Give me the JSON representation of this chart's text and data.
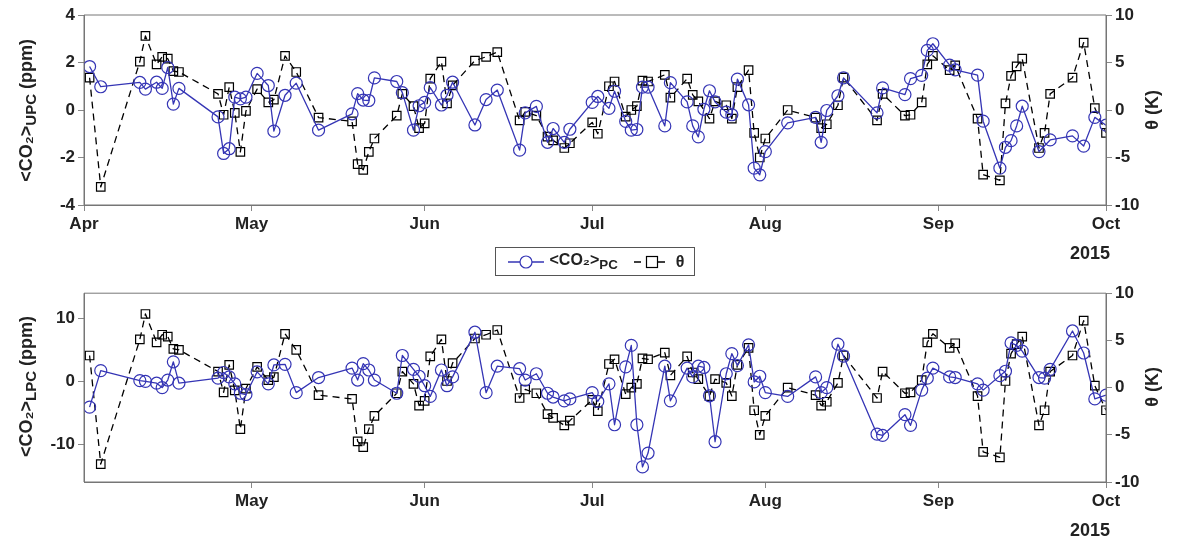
{
  "chart_data": [
    {
      "type": "line",
      "ylabel": "<CO₂>$_{UPC}$ (ppm)",
      "y2label": "θ (K)",
      "xlabel": "2015",
      "legend": "bottom",
      "xlim": [
        "2015-04-01",
        "2015-10-01"
      ],
      "xticks": [
        {
          "value": "2015-04-01",
          "label": "Apr"
        },
        {
          "value": "2015-05-01",
          "label": "May"
        },
        {
          "value": "2015-06-01",
          "label": "Jun"
        },
        {
          "value": "2015-07-01",
          "label": "Jul"
        },
        {
          "value": "2015-08-01",
          "label": "Aug"
        },
        {
          "value": "2015-09-01",
          "label": "Sep"
        },
        {
          "value": "2015-10-01",
          "label": "Oct"
        }
      ],
      "ylim": [
        -4,
        4
      ],
      "yticks": [
        -4,
        -2,
        0,
        2,
        4
      ],
      "y2lim": [
        -10,
        10
      ],
      "y2ticks": [
        -10,
        -5,
        0,
        5,
        10
      ],
      "series": [
        {
          "name": "<CO₂>$_{PC}$",
          "color": "#3535b5",
          "marker": "circle",
          "line_style": "solid",
          "x": [
            "2015-04-02",
            "2015-04-04",
            "2015-04-11",
            "2015-04-12",
            "2015-04-14",
            "2015-04-15",
            "2015-04-16",
            "2015-04-17",
            "2015-04-18",
            "2015-04-25",
            "2015-04-26",
            "2015-04-27",
            "2015-04-28",
            "2015-04-29",
            "2015-04-30",
            "2015-05-02",
            "2015-05-04",
            "2015-05-05",
            "2015-05-07",
            "2015-05-09",
            "2015-05-13",
            "2015-05-19",
            "2015-05-20",
            "2015-05-21",
            "2015-05-22",
            "2015-05-23",
            "2015-05-27",
            "2015-05-28",
            "2015-05-30",
            "2015-05-31",
            "2015-06-01",
            "2015-06-02",
            "2015-06-04",
            "2015-06-05",
            "2015-06-06",
            "2015-06-10",
            "2015-06-12",
            "2015-06-14",
            "2015-06-18",
            "2015-06-19",
            "2015-06-21",
            "2015-06-23",
            "2015-06-24",
            "2015-06-26",
            "2015-06-27",
            "2015-07-01",
            "2015-07-02",
            "2015-07-04",
            "2015-07-05",
            "2015-07-07",
            "2015-07-08",
            "2015-07-09",
            "2015-07-10",
            "2015-07-11",
            "2015-07-14",
            "2015-07-15",
            "2015-07-18",
            "2015-07-19",
            "2015-07-20",
            "2015-07-21",
            "2015-07-22",
            "2015-07-23",
            "2015-07-25",
            "2015-07-26",
            "2015-07-27",
            "2015-07-29",
            "2015-07-30",
            "2015-07-31",
            "2015-08-01",
            "2015-08-05",
            "2015-08-10",
            "2015-08-11",
            "2015-08-12",
            "2015-08-14",
            "2015-08-15",
            "2015-08-21",
            "2015-08-22",
            "2015-08-26",
            "2015-08-27",
            "2015-08-29",
            "2015-08-30",
            "2015-08-31",
            "2015-09-03",
            "2015-09-04",
            "2015-09-08",
            "2015-09-09",
            "2015-09-12",
            "2015-09-13",
            "2015-09-14",
            "2015-09-15",
            "2015-09-16",
            "2015-09-19",
            "2015-09-21",
            "2015-09-25",
            "2015-09-27",
            "2015-09-29",
            "2015-10-01"
          ],
          "values": [
            1.83,
            0.98,
            1.16,
            0.88,
            1.17,
            0.91,
            1.79,
            0.25,
            0.91,
            -0.29,
            -1.83,
            -1.63,
            0.54,
            0.47,
            0.54,
            1.54,
            1.03,
            -0.89,
            0.62,
            1.13,
            -0.85,
            -0.16,
            0.69,
            0.42,
            0.4,
            1.35,
            1.2,
            0.73,
            -0.85,
            0.18,
            0.32,
            0.94,
            0.21,
            0.62,
            1.17,
            -0.63,
            0.44,
            0.84,
            -1.69,
            -0.12,
            0.15,
            -1.36,
            -0.78,
            -1.36,
            -0.81,
            0.32,
            0.57,
            0.07,
            0.79,
            -0.48,
            -0.85,
            -0.82,
            0.96,
            0.96,
            -0.67,
            1.15,
            0.34,
            -0.67,
            -1.13,
            0.03,
            0.81,
            0.34,
            -0.09,
            -0.2,
            1.3,
            0.22,
            -2.45,
            -2.73,
            -1.75,
            -0.54,
            -0.31,
            -1.36,
            -0.02,
            0.6,
            1.35,
            -0.12,
            0.93,
            0.65,
            1.32,
            1.46,
            2.51,
            2.79,
            1.89,
            1.69,
            1.47,
            -0.47,
            -2.45,
            -1.57,
            -1.29,
            -0.67,
            0.16,
            -1.75,
            -1.26,
            -1.09,
            -1.52,
            -0.31,
            -0.64
          ]
        },
        {
          "name": "θ",
          "color": "#000000",
          "marker": "square",
          "line_style": "dashed",
          "axis": "y2",
          "x": [
            "2015-04-02",
            "2015-04-04",
            "2015-04-11",
            "2015-04-12",
            "2015-04-14",
            "2015-04-15",
            "2015-04-16",
            "2015-04-17",
            "2015-04-18",
            "2015-04-25",
            "2015-04-26",
            "2015-04-27",
            "2015-04-28",
            "2015-04-29",
            "2015-04-30",
            "2015-05-02",
            "2015-05-04",
            "2015-05-05",
            "2015-05-07",
            "2015-05-09",
            "2015-05-13",
            "2015-05-19",
            "2015-05-20",
            "2015-05-21",
            "2015-05-22",
            "2015-05-23",
            "2015-05-27",
            "2015-05-28",
            "2015-05-30",
            "2015-05-31",
            "2015-06-01",
            "2015-06-02",
            "2015-06-04",
            "2015-06-05",
            "2015-06-06",
            "2015-06-10",
            "2015-06-12",
            "2015-06-14",
            "2015-06-18",
            "2015-06-19",
            "2015-06-21",
            "2015-06-23",
            "2015-06-24",
            "2015-06-26",
            "2015-06-27",
            "2015-07-01",
            "2015-07-02",
            "2015-07-04",
            "2015-07-05",
            "2015-07-07",
            "2015-07-08",
            "2015-07-09",
            "2015-07-10",
            "2015-07-11",
            "2015-07-14",
            "2015-07-15",
            "2015-07-18",
            "2015-07-19",
            "2015-07-20",
            "2015-07-22",
            "2015-07-23",
            "2015-07-25",
            "2015-07-26",
            "2015-07-27",
            "2015-07-29",
            "2015-07-30",
            "2015-07-31",
            "2015-08-01",
            "2015-08-05",
            "2015-08-10",
            "2015-08-11",
            "2015-08-12",
            "2015-08-14",
            "2015-08-15",
            "2015-08-21",
            "2015-08-22",
            "2015-08-26",
            "2015-08-27",
            "2015-08-29",
            "2015-08-30",
            "2015-08-31",
            "2015-09-03",
            "2015-09-04",
            "2015-09-08",
            "2015-09-09",
            "2015-09-12",
            "2015-09-13",
            "2015-09-14",
            "2015-09-15",
            "2015-09-16",
            "2015-09-19",
            "2015-09-20",
            "2015-09-21",
            "2015-09-25",
            "2015-09-27",
            "2015-09-29",
            "2015-10-01"
          ],
          "values": [
            3.4,
            -8.1,
            5.1,
            7.8,
            4.8,
            5.6,
            5.4,
            4.1,
            4.0,
            1.7,
            -0.5,
            2.4,
            -0.3,
            -4.4,
            -0.1,
            2.2,
            0.8,
            1.1,
            5.7,
            4.0,
            -0.8,
            -1.2,
            -5.7,
            -6.3,
            -4.4,
            -3.0,
            -0.6,
            1.7,
            0.4,
            -1.9,
            -1.4,
            3.3,
            5.1,
            0.7,
            2.6,
            5.2,
            5.6,
            6.1,
            -1.1,
            -0.2,
            -0.6,
            -2.8,
            -3.2,
            -4.0,
            -3.5,
            -1.3,
            -2.5,
            2.5,
            3.0,
            -0.7,
            0.0,
            0.4,
            3.1,
            3.0,
            3.7,
            1.3,
            3.3,
            1.6,
            0.9,
            -0.9,
            0.9,
            0.5,
            -0.9,
            2.4,
            4.2,
            -2.4,
            -5.0,
            -3.0,
            0.0,
            -0.8,
            -1.9,
            -1.5,
            0.5,
            3.4,
            -1.1,
            1.7,
            -0.6,
            -0.5,
            0.8,
            4.8,
            5.7,
            4.2,
            4.7,
            -0.9,
            -6.8,
            -7.4,
            0.7,
            3.6,
            4.6,
            5.4,
            -4.0,
            -2.4,
            1.7,
            3.4,
            7.1,
            0.2,
            -2.4
          ]
        }
      ]
    },
    {
      "type": "line",
      "ylabel": "<CO₂>$_{LPC}$ (ppm)",
      "y2label": "θ (K)",
      "xlabel": "2015",
      "xlim": [
        "2015-04-01",
        "2015-10-01"
      ],
      "xticks": [
        {
          "value": "2015-05-01",
          "label": "May"
        },
        {
          "value": "2015-06-01",
          "label": "Jun"
        },
        {
          "value": "2015-07-01",
          "label": "Jul"
        },
        {
          "value": "2015-08-01",
          "label": "Aug"
        },
        {
          "value": "2015-09-01",
          "label": "Sep"
        },
        {
          "value": "2015-10-01",
          "label": "Oct"
        }
      ],
      "ylim": [
        -16,
        14
      ],
      "yticks": [
        -10,
        0,
        10
      ],
      "y2lim": [
        -10,
        10
      ],
      "y2ticks": [
        -10,
        -5,
        0,
        5,
        10
      ],
      "series": [
        {
          "color": "#3535b5",
          "marker": "circle",
          "line_style": "solid",
          "x": [
            "2015-04-02",
            "2015-04-04",
            "2015-04-11",
            "2015-04-12",
            "2015-04-14",
            "2015-04-15",
            "2015-04-16",
            "2015-04-17",
            "2015-04-18",
            "2015-04-25",
            "2015-04-26",
            "2015-04-27",
            "2015-04-28",
            "2015-04-29",
            "2015-04-30",
            "2015-05-02",
            "2015-05-04",
            "2015-05-05",
            "2015-05-07",
            "2015-05-09",
            "2015-05-13",
            "2015-05-19",
            "2015-05-20",
            "2015-05-21",
            "2015-05-22",
            "2015-05-23",
            "2015-05-27",
            "2015-05-28",
            "2015-05-30",
            "2015-05-31",
            "2015-06-01",
            "2015-06-02",
            "2015-06-04",
            "2015-06-05",
            "2015-06-06",
            "2015-06-10",
            "2015-06-12",
            "2015-06-14",
            "2015-06-18",
            "2015-06-19",
            "2015-06-21",
            "2015-06-23",
            "2015-06-24",
            "2015-06-26",
            "2015-06-27",
            "2015-07-01",
            "2015-07-02",
            "2015-07-04",
            "2015-07-05",
            "2015-07-07",
            "2015-07-08",
            "2015-07-09",
            "2015-07-10",
            "2015-07-11",
            "2015-07-14",
            "2015-07-15",
            "2015-07-18",
            "2015-07-19",
            "2015-07-20",
            "2015-07-21",
            "2015-07-22",
            "2015-07-23",
            "2015-07-25",
            "2015-07-26",
            "2015-07-27",
            "2015-07-29",
            "2015-07-30",
            "2015-07-31",
            "2015-08-01",
            "2015-08-05",
            "2015-08-10",
            "2015-08-11",
            "2015-08-12",
            "2015-08-14",
            "2015-08-15",
            "2015-08-21",
            "2015-08-22",
            "2015-08-26",
            "2015-08-27",
            "2015-08-29",
            "2015-08-30",
            "2015-08-31",
            "2015-09-03",
            "2015-09-04",
            "2015-09-08",
            "2015-09-09",
            "2015-09-12",
            "2015-09-13",
            "2015-09-14",
            "2015-09-15",
            "2015-09-16",
            "2015-09-19",
            "2015-09-20",
            "2015-09-21",
            "2015-09-25",
            "2015-09-27",
            "2015-09-29",
            "2015-10-01"
          ],
          "values": [
            -4.1,
            1.7,
            0.1,
            0.0,
            -0.3,
            -1.0,
            0.2,
            3.1,
            -0.3,
            0.5,
            1.4,
            0.7,
            -0.4,
            -1.9,
            -2.1,
            1.5,
            -0.4,
            2.6,
            2.7,
            -1.8,
            0.6,
            2.1,
            0.2,
            2.8,
            1.8,
            0.2,
            -1.9,
            4.1,
            1.9,
            0.8,
            -0.7,
            -2.4,
            1.8,
            -0.7,
            0.7,
            7.8,
            -1.8,
            2.4,
            2.0,
            0.2,
            1.2,
            -1.9,
            -2.5,
            -3.1,
            -2.8,
            -1.8,
            -3.2,
            -0.4,
            -6.9,
            2.3,
            5.7,
            -6.9,
            -13.6,
            -11.4,
            2.4,
            -3.1,
            2.1,
            0.7,
            2.4,
            2.2,
            -2.3,
            -9.6,
            1.2,
            4.4,
            2.5,
            5.8,
            -0.1,
            0.8,
            -1.8,
            -2.4,
            0.7,
            -1.8,
            -1.0,
            5.9,
            4.0,
            -8.4,
            -8.6,
            -5.3,
            -7.0,
            -1.4,
            0.5,
            2.1,
            0.7,
            0.6,
            -0.4,
            -1.4,
            0.9,
            1.6,
            6.1,
            5.7,
            4.8,
            0.6,
            0.5,
            1.9,
            8.0,
            4.5,
            -2.8,
            -2.2
          ]
        },
        {
          "color": "#000000",
          "marker": "square",
          "line_style": "dashed",
          "axis": "y2",
          "x": [
            "2015-04-02",
            "2015-04-04",
            "2015-04-11",
            "2015-04-12",
            "2015-04-14",
            "2015-04-15",
            "2015-04-16",
            "2015-04-17",
            "2015-04-18",
            "2015-04-25",
            "2015-04-26",
            "2015-04-27",
            "2015-04-28",
            "2015-04-29",
            "2015-04-30",
            "2015-05-02",
            "2015-05-04",
            "2015-05-05",
            "2015-05-07",
            "2015-05-09",
            "2015-05-13",
            "2015-05-19",
            "2015-05-20",
            "2015-05-21",
            "2015-05-22",
            "2015-05-23",
            "2015-05-27",
            "2015-05-28",
            "2015-05-30",
            "2015-05-31",
            "2015-06-01",
            "2015-06-02",
            "2015-06-04",
            "2015-06-05",
            "2015-06-06",
            "2015-06-10",
            "2015-06-12",
            "2015-06-14",
            "2015-06-18",
            "2015-06-19",
            "2015-06-21",
            "2015-06-23",
            "2015-06-24",
            "2015-06-26",
            "2015-06-27",
            "2015-07-01",
            "2015-07-02",
            "2015-07-04",
            "2015-07-05",
            "2015-07-07",
            "2015-07-08",
            "2015-07-09",
            "2015-07-10",
            "2015-07-11",
            "2015-07-14",
            "2015-07-15",
            "2015-07-18",
            "2015-07-19",
            "2015-07-20",
            "2015-07-22",
            "2015-07-23",
            "2015-07-25",
            "2015-07-26",
            "2015-07-27",
            "2015-07-29",
            "2015-07-30",
            "2015-07-31",
            "2015-08-01",
            "2015-08-05",
            "2015-08-10",
            "2015-08-11",
            "2015-08-12",
            "2015-08-14",
            "2015-08-15",
            "2015-08-21",
            "2015-08-22",
            "2015-08-26",
            "2015-08-27",
            "2015-08-29",
            "2015-08-30",
            "2015-08-31",
            "2015-09-03",
            "2015-09-04",
            "2015-09-08",
            "2015-09-09",
            "2015-09-12",
            "2015-09-13",
            "2015-09-14",
            "2015-09-15",
            "2015-09-16",
            "2015-09-19",
            "2015-09-20",
            "2015-09-21",
            "2015-09-25",
            "2015-09-27",
            "2015-09-29",
            "2015-10-01"
          ],
          "values": [
            3.4,
            -8.1,
            5.1,
            7.8,
            4.8,
            5.6,
            5.4,
            4.1,
            4.0,
            1.7,
            -0.5,
            2.4,
            -0.3,
            -4.4,
            -0.1,
            2.2,
            0.8,
            1.1,
            5.7,
            4.0,
            -0.8,
            -1.2,
            -5.7,
            -6.3,
            -4.4,
            -3.0,
            -0.6,
            1.7,
            0.4,
            -1.9,
            -1.4,
            3.3,
            5.1,
            0.7,
            2.6,
            5.2,
            5.6,
            6.1,
            -1.1,
            -0.2,
            -0.6,
            -2.8,
            -3.2,
            -4.0,
            -3.5,
            -1.3,
            -2.5,
            2.5,
            3.0,
            -0.7,
            0.0,
            0.4,
            3.1,
            3.0,
            3.7,
            1.3,
            3.3,
            1.6,
            0.9,
            -0.9,
            0.9,
            0.5,
            -0.9,
            2.4,
            4.2,
            -2.4,
            -5.0,
            -3.0,
            0.0,
            -0.8,
            -1.9,
            -1.5,
            0.5,
            3.4,
            -1.1,
            1.7,
            -0.6,
            -0.5,
            0.8,
            4.8,
            5.7,
            4.2,
            4.7,
            -0.9,
            -6.8,
            -7.4,
            0.7,
            3.6,
            4.6,
            5.4,
            -4.0,
            -2.4,
            1.7,
            3.4,
            7.1,
            0.2,
            -2.4
          ]
        }
      ]
    }
  ]
}
